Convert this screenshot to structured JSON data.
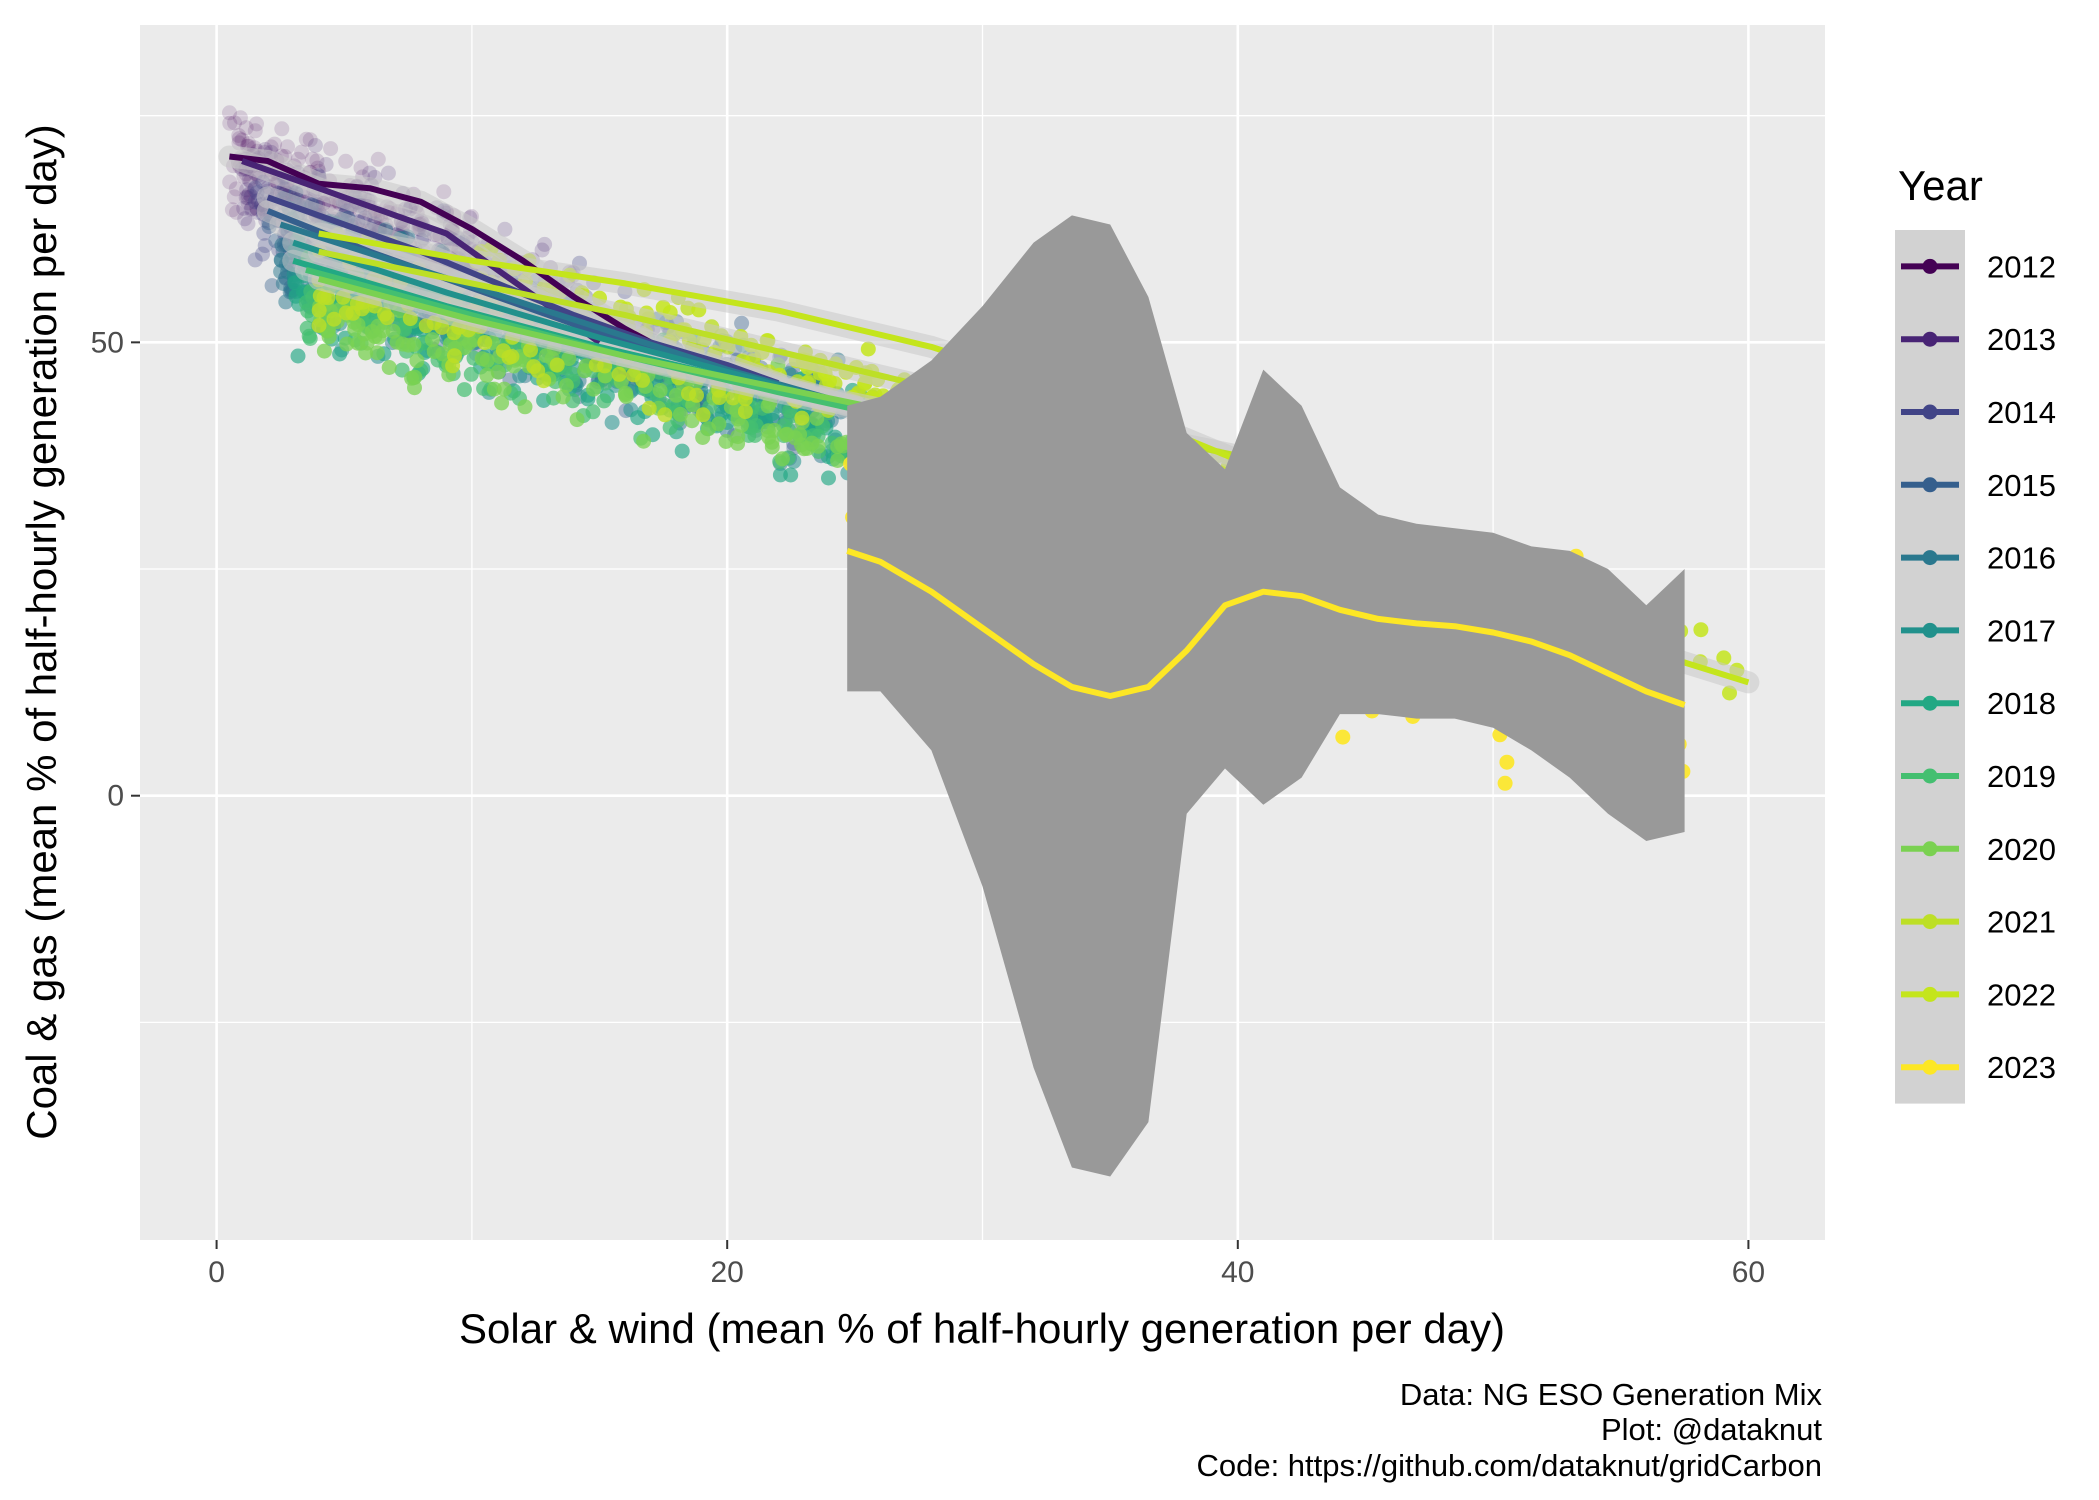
{
  "chart_data": {
    "type": "scatter",
    "xlabel": "Solar & wind (mean % of half-hourly generation per day)",
    "ylabel": "Coal & gas (mean % of half-hourly generation per day)",
    "xlim": [
      -3,
      63
    ],
    "ylim": [
      -49,
      85
    ],
    "x_ticks": [
      0,
      20,
      40,
      60
    ],
    "x_tick_labels": [
      "0",
      "20",
      "40",
      "60"
    ],
    "y_ticks": [
      0,
      50
    ],
    "y_tick_labels": [
      "0",
      "50"
    ],
    "grid": true,
    "legend": {
      "title": "Year",
      "position": "right",
      "entries": [
        "2012",
        "2013",
        "2014",
        "2015",
        "2016",
        "2017",
        "2018",
        "2019",
        "2020",
        "2021",
        "2022",
        "2023"
      ]
    },
    "caption": [
      "Data: NG ESO Generation Mix",
      "Plot: @dataknut",
      "Code: https://github.com/dataknut/gridCarbon"
    ],
    "series": [
      {
        "name": "2012",
        "color": "#440154",
        "alpha": 0.15,
        "point_x_range": [
          0.5,
          10
        ],
        "point_cloud": {
          "slope": -1.2,
          "intercept": 71,
          "spread": 4
        },
        "smooth": {
          "x": [
            0.5,
            2,
            4,
            6,
            8,
            10,
            12,
            14,
            16,
            18
          ],
          "y": [
            70.5,
            70,
            67.5,
            67,
            65.5,
            62.5,
            59,
            55,
            51.5,
            48.5
          ]
        }
      },
      {
        "name": "2013",
        "color": "#482475",
        "alpha": 0.2,
        "point_x_range": [
          1,
          14
        ],
        "point_cloud": {
          "slope": -1.1,
          "intercept": 69,
          "spread": 4
        },
        "smooth": {
          "x": [
            1,
            3,
            5,
            7,
            9,
            11,
            13,
            15
          ],
          "y": [
            70,
            68,
            66,
            64,
            62,
            58,
            54,
            50
          ]
        }
      },
      {
        "name": "2014",
        "color": "#414487",
        "alpha": 0.3,
        "point_x_range": [
          1.5,
          18
        ],
        "point_cloud": {
          "slope": -1.0,
          "intercept": 66,
          "spread": 4
        },
        "smooth": {
          "x": [
            2,
            5,
            8,
            11,
            14,
            17,
            20,
            22
          ],
          "y": [
            66,
            63,
            60,
            56.5,
            53,
            50,
            47.5,
            45.5
          ]
        }
      },
      {
        "name": "2015",
        "color": "#355F8D",
        "alpha": 0.4,
        "point_x_range": [
          2,
          24
        ],
        "point_cloud": {
          "slope": -0.9,
          "intercept": 63,
          "spread": 4
        },
        "smooth": {
          "x": [
            2,
            6,
            10,
            14,
            18,
            22,
            24
          ],
          "y": [
            64.5,
            60,
            56,
            52,
            48.5,
            45,
            43.5
          ]
        }
      },
      {
        "name": "2016",
        "color": "#2A788E",
        "alpha": 0.5,
        "point_x_range": [
          2.5,
          25
        ],
        "point_cloud": {
          "slope": -0.85,
          "intercept": 62,
          "spread": 4
        },
        "smooth": {
          "x": [
            2.5,
            8,
            14,
            20,
            25
          ],
          "y": [
            63,
            58,
            52.5,
            47,
            43
          ]
        }
      },
      {
        "name": "2017",
        "color": "#21918C",
        "alpha": 0.55,
        "point_x_range": [
          3,
          26
        ],
        "point_cloud": {
          "slope": -0.8,
          "intercept": 60,
          "spread": 4
        },
        "smooth": {
          "x": [
            3,
            9,
            15,
            21,
            26
          ],
          "y": [
            61,
            55.5,
            50.5,
            46,
            42
          ]
        }
      },
      {
        "name": "2018",
        "color": "#22A884",
        "alpha": 0.65,
        "point_x_range": [
          3,
          28
        ],
        "point_cloud": {
          "slope": -0.75,
          "intercept": 58,
          "spread": 4
        },
        "smooth": {
          "x": [
            3,
            9,
            15,
            21,
            28
          ],
          "y": [
            59,
            54,
            49.5,
            45.5,
            41
          ]
        }
      },
      {
        "name": "2019",
        "color": "#44BF70",
        "alpha": 0.7,
        "point_x_range": [
          3.5,
          30
        ],
        "point_cloud": {
          "slope": -0.7,
          "intercept": 57,
          "spread": 4
        },
        "smooth": {
          "x": [
            3.5,
            10,
            16,
            22,
            30
          ],
          "y": [
            58,
            53,
            48.5,
            44.5,
            39.5
          ]
        }
      },
      {
        "name": "2020",
        "color": "#7AD151",
        "alpha": 0.75,
        "point_x_range": [
          4,
          32
        ],
        "point_cloud": {
          "slope": -0.65,
          "intercept": 56,
          "spread": 4
        },
        "smooth": {
          "x": [
            4,
            10,
            16,
            22,
            28,
            32
          ],
          "y": [
            57,
            52.5,
            48.5,
            45,
            41.5,
            39
          ]
        }
      },
      {
        "name": "2021",
        "color": "#BDDF26",
        "alpha": 0.8,
        "point_x_range": [
          4,
          40
        ],
        "point_cloud": {
          "slope": -0.6,
          "intercept": 59,
          "spread": 4
        },
        "smooth": {
          "x": [
            4,
            10,
            16,
            22,
            28,
            34,
            40
          ],
          "y": [
            60,
            56.5,
            53,
            49,
            45,
            41,
            37.5
          ]
        }
      },
      {
        "name": "2022",
        "color": "#C4E51C",
        "alpha": 0.85,
        "point_x_range": [
          10,
          60
        ],
        "point_cloud": {
          "slope": -0.9,
          "intercept": 67,
          "spread": 3
        },
        "smooth": {
          "x": [
            4,
            10,
            16,
            22,
            28,
            34,
            40,
            46,
            52,
            56,
            60
          ],
          "y": [
            62,
            59,
            56.5,
            53.5,
            49.5,
            44,
            37,
            28.5,
            21,
            16,
            12.5
          ]
        }
      },
      {
        "name": "2023",
        "color": "#FDE725",
        "alpha": 0.9,
        "point_x_range": [
          24.7,
          57.5
        ],
        "point_cloud": {
          "slope": -0.5,
          "intercept": 40,
          "spread": 8
        },
        "smooth": {
          "x": [
            24.7,
            26,
            28,
            30,
            32,
            33.5,
            35,
            36.5,
            38,
            39.5,
            41,
            42.5,
            44,
            45.5,
            47,
            48.5,
            50,
            51.5,
            53,
            54.5,
            56,
            57.5
          ],
          "y": [
            27,
            25.8,
            22.5,
            18.5,
            14.5,
            12,
            11,
            12,
            16,
            21,
            22.5,
            22,
            20.5,
            19.5,
            19,
            18.7,
            18,
            17,
            15.5,
            13.5,
            11.5,
            10
          ]
        }
      }
    ],
    "ribbon_2023": {
      "x": [
        24.7,
        26,
        28,
        30,
        32,
        33.5,
        35,
        36.5,
        38,
        39.5,
        41,
        42.5,
        44,
        45.5,
        47,
        48.5,
        50,
        51.5,
        53,
        54.5,
        56,
        57.5
      ],
      "upper": [
        43,
        44,
        48,
        54,
        61,
        64,
        63,
        55,
        40,
        36,
        47,
        43,
        34,
        31,
        30,
        29.5,
        29,
        27.5,
        27,
        25,
        21,
        25
      ],
      "lower": [
        11.5,
        11.5,
        5,
        -10,
        -30,
        -41,
        -42,
        -36,
        -2,
        3,
        -1,
        2,
        9,
        9,
        8.5,
        8.5,
        7.5,
        5,
        2,
        -2,
        -5,
        -4
      ]
    }
  }
}
